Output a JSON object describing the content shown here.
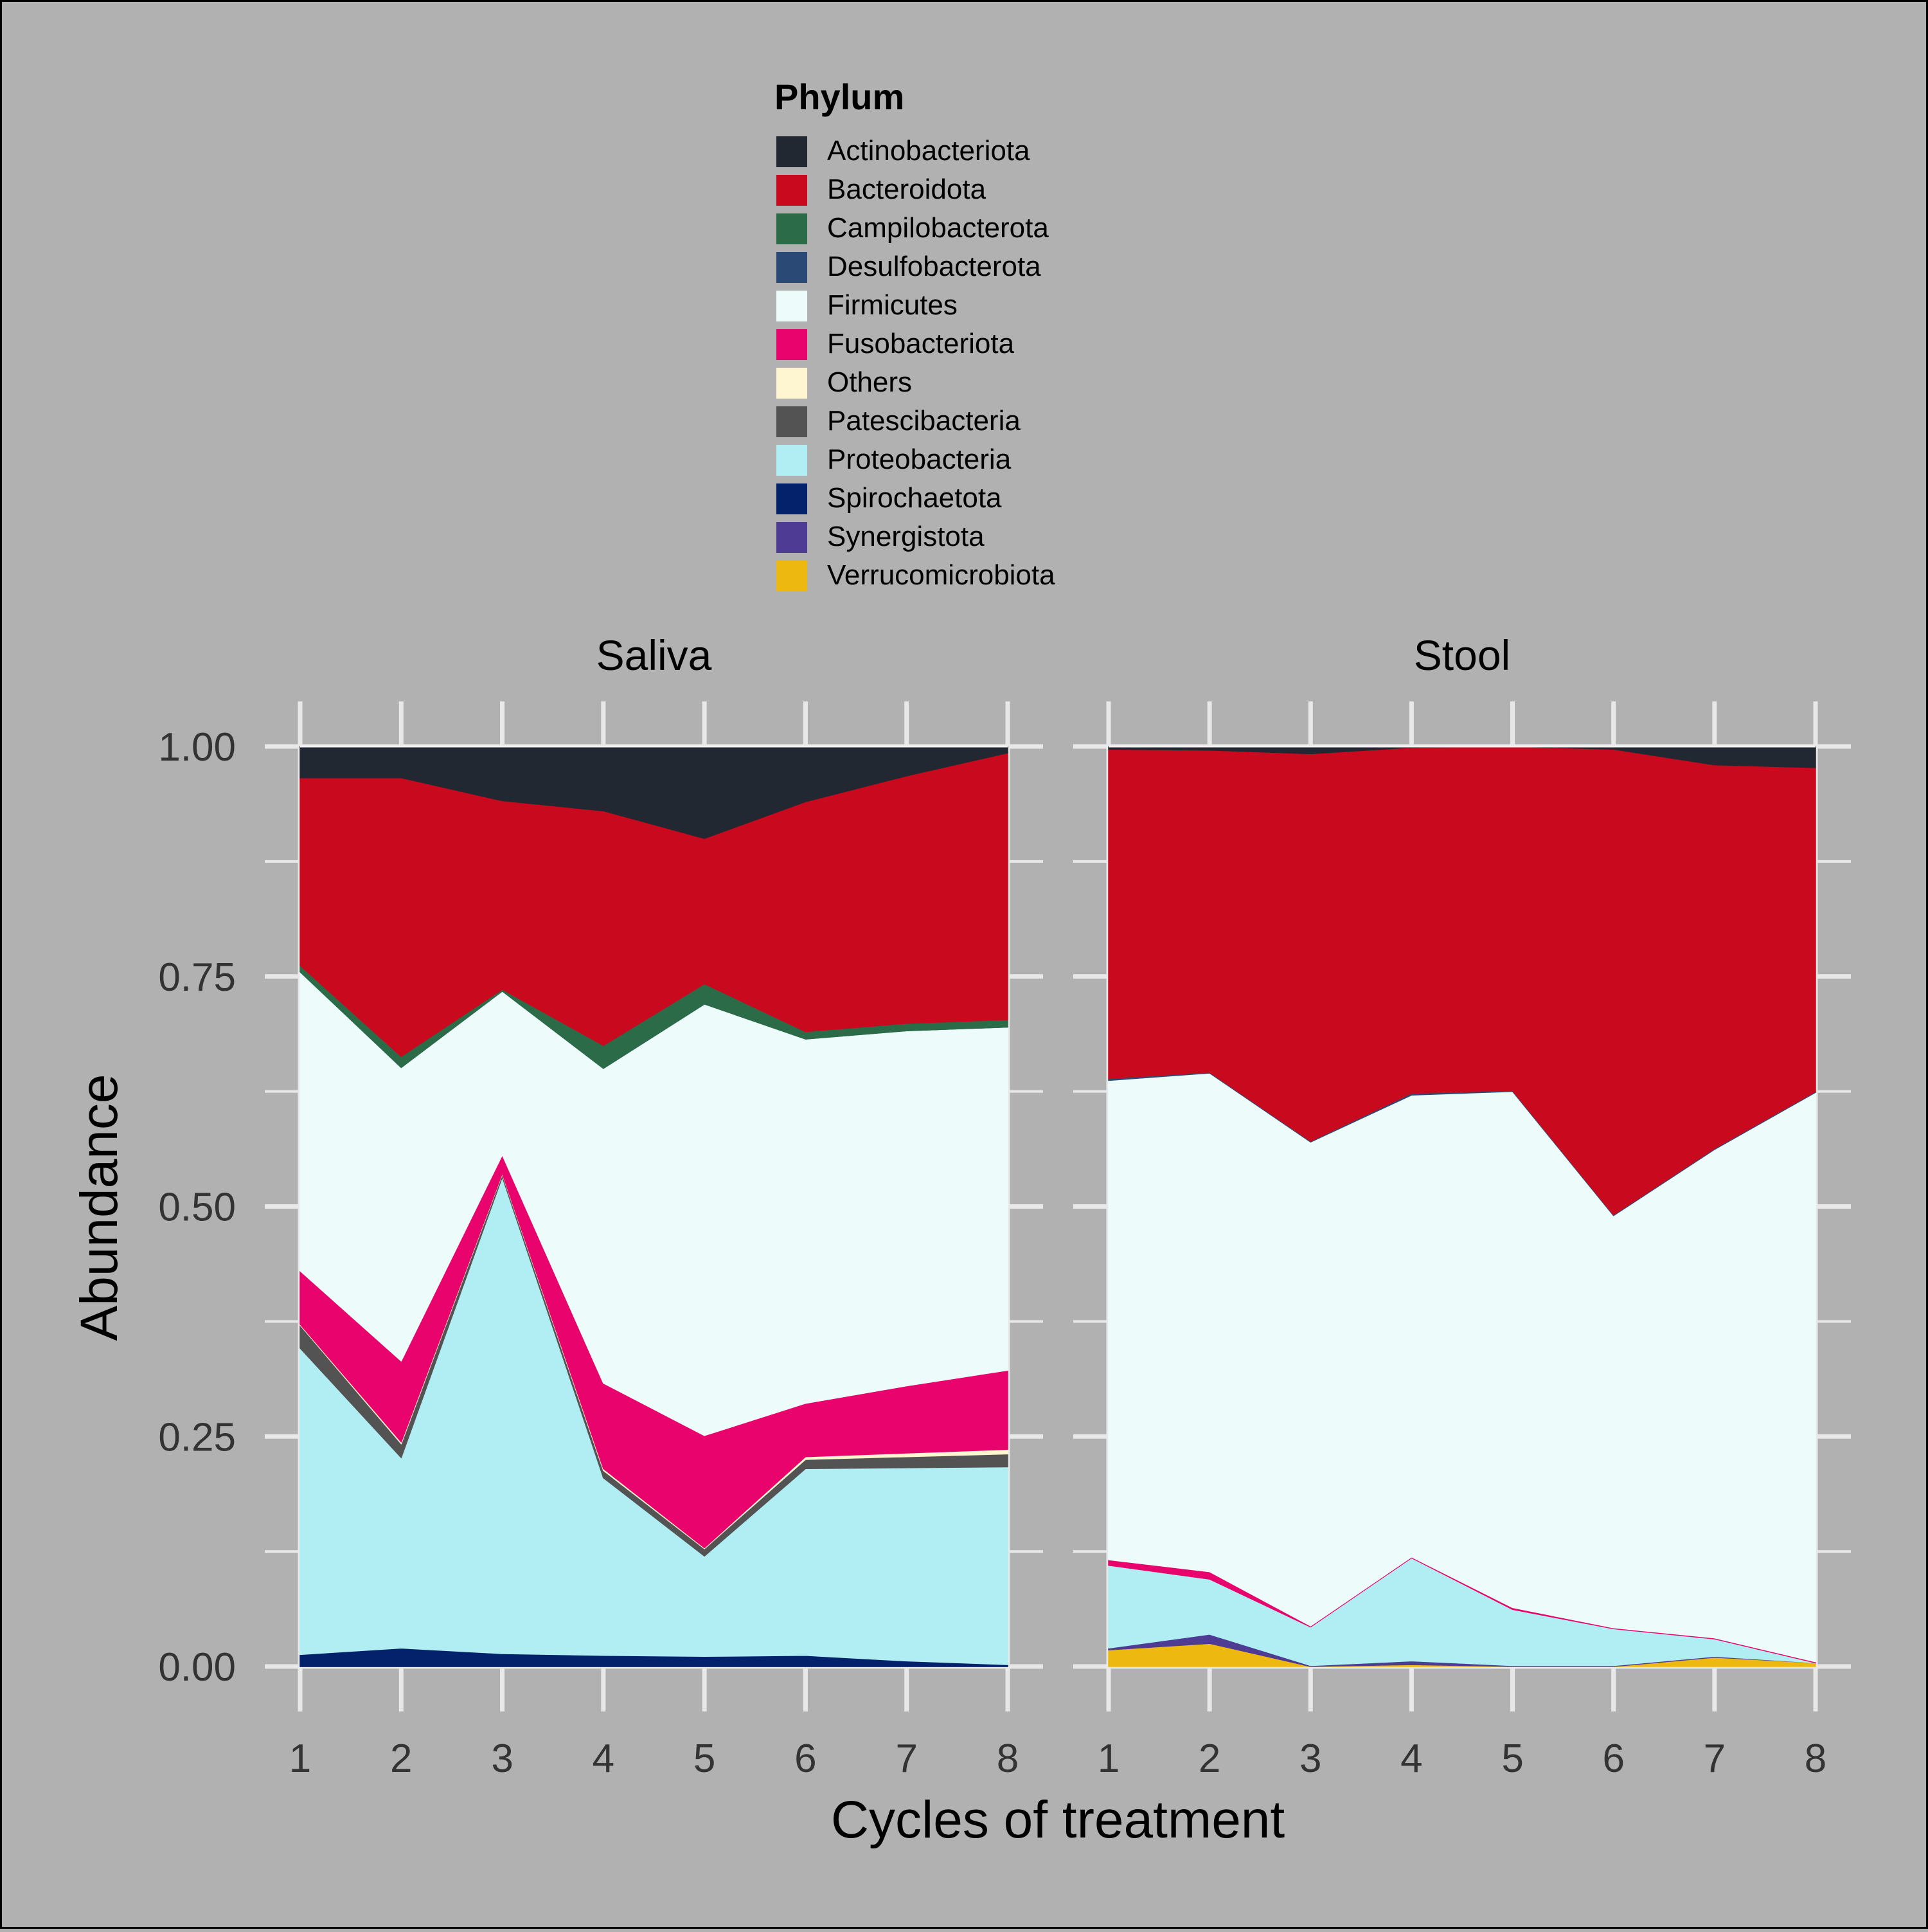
{
  "chart_data": {
    "type": "area",
    "stacked": true,
    "xlabel": "Cycles of treatment",
    "ylabel": "Abundance",
    "ylim": [
      0,
      1
    ],
    "xlim": [
      1,
      8
    ],
    "y_ticks": [
      "0.00",
      "0.25",
      "0.50",
      "0.75",
      "1.00"
    ],
    "x": [
      1,
      2,
      3,
      4,
      5,
      6,
      7,
      8
    ],
    "x_ticks": [
      "1",
      "2",
      "3",
      "4",
      "5",
      "6",
      "7",
      "8"
    ],
    "grid": true,
    "legend": {
      "title": "Phylum",
      "position": "top",
      "entries": [
        {
          "name": "Actinobacteriota",
          "color": "#222831"
        },
        {
          "name": "Bacteroidota",
          "color": "#C90A1E"
        },
        {
          "name": "Campilobacterota",
          "color": "#2C6B48"
        },
        {
          "name": "Desulfobacterota",
          "color": "#2A4A75"
        },
        {
          "name": "Firmicutes",
          "color": "#EEFBFB"
        },
        {
          "name": "Fusobacteriota",
          "color": "#E8036D"
        },
        {
          "name": "Others",
          "color": "#FEF6D0"
        },
        {
          "name": "Patescibacteria",
          "color": "#535353"
        },
        {
          "name": "Proteobacteria",
          "color": "#B0EEF4"
        },
        {
          "name": "Spirochaetota",
          "color": "#04226B"
        },
        {
          "name": "Synergistota",
          "color": "#4E3B93"
        },
        {
          "name": "Verrucomicrobiota",
          "color": "#EDB910"
        }
      ]
    },
    "panels": [
      {
        "title": "Saliva",
        "series": [
          {
            "name": "Verrucomicrobiota",
            "values": [
              0,
              0,
              0,
              0,
              0,
              0,
              0,
              0
            ]
          },
          {
            "name": "Synergistota",
            "values": [
              0,
              0,
              0,
              0,
              0,
              0,
              0,
              0
            ]
          },
          {
            "name": "Spirochaetota",
            "values": [
              0.013,
              0.02,
              0.014,
              0.012,
              0.011,
              0.012,
              0.006,
              0.002
            ]
          },
          {
            "name": "Proteobacteria",
            "values": [
              0.333,
              0.207,
              0.518,
              0.193,
              0.109,
              0.203,
              0.21,
              0.215
            ]
          },
          {
            "name": "Patescibacteria",
            "values": [
              0.025,
              0.015,
              0.003,
              0.008,
              0.008,
              0.01,
              0.012,
              0.014
            ]
          },
          {
            "name": "Others",
            "values": [
              0.001,
              0.002,
              0.001,
              0.002,
              0.001,
              0.003,
              0.004,
              0.005
            ]
          },
          {
            "name": "Fusobacteriota",
            "values": [
              0.058,
              0.088,
              0.02,
              0.093,
              0.122,
              0.058,
              0.073,
              0.086
            ]
          },
          {
            "name": "Firmicutes",
            "values": [
              0.325,
              0.319,
              0.178,
              0.342,
              0.469,
              0.396,
              0.386,
              0.373
            ]
          },
          {
            "name": "Desulfobacterota",
            "values": [
              0,
              0,
              0,
              0,
              0,
              0,
              0,
              0
            ]
          },
          {
            "name": "Campilobacterota",
            "values": [
              0.007,
              0.012,
              0.002,
              0.025,
              0.022,
              0.008,
              0.008,
              0.008
            ]
          },
          {
            "name": "Bacteroidota",
            "values": [
              0.204,
              0.303,
              0.205,
              0.255,
              0.158,
              0.25,
              0.269,
              0.29
            ]
          },
          {
            "name": "Actinobacteriota",
            "values": [
              0.034,
              0.034,
              0.059,
              0.07,
              0.1,
              0.06,
              0.032,
              0.007
            ]
          }
        ]
      },
      {
        "title": "Stool",
        "series": [
          {
            "name": "Verrucomicrobiota",
            "values": [
              0.018,
              0.025,
              0,
              0.002,
              0,
              0,
              0.01,
              0.004
            ]
          },
          {
            "name": "Synergistota",
            "values": [
              0.002,
              0.01,
              0.001,
              0.004,
              0.001,
              0.001,
              0.001,
              0
            ]
          },
          {
            "name": "Spirochaetota",
            "values": [
              0,
              0,
              0,
              0,
              0,
              0,
              0,
              0
            ]
          },
          {
            "name": "Proteobacteria",
            "values": [
              0.09,
              0.06,
              0.042,
              0.112,
              0.061,
              0.04,
              0.019,
              0
            ]
          },
          {
            "name": "Patescibacteria",
            "values": [
              0,
              0,
              0,
              0,
              0,
              0,
              0,
              0
            ]
          },
          {
            "name": "Others",
            "values": [
              0,
              0,
              0,
              0,
              0,
              0,
              0,
              0
            ]
          },
          {
            "name": "Fusobacteriota",
            "values": [
              0.006,
              0.008,
              0.001,
              0.001,
              0.002,
              0.001,
              0.001,
              0.001
            ]
          },
          {
            "name": "Firmicutes",
            "values": [
              0.521,
              0.542,
              0.526,
              0.502,
              0.561,
              0.448,
              0.531,
              0.619
            ]
          },
          {
            "name": "Desulfobacterota",
            "values": [
              0.002,
              0.001,
              0.001,
              0.002,
              0.001,
              0.001,
              0.001,
              0.001
            ]
          },
          {
            "name": "Campilobacterota",
            "values": [
              0,
              0,
              0,
              0,
              0,
              0,
              0,
              0
            ]
          },
          {
            "name": "Bacteroidota",
            "values": [
              0.358,
              0.35,
              0.421,
              0.376,
              0.374,
              0.506,
              0.417,
              0.352
            ]
          },
          {
            "name": "Actinobacteriota",
            "values": [
              0.003,
              0.004,
              0.008,
              0.001,
              0,
              0.003,
              0.02,
              0.023
            ]
          }
        ]
      }
    ]
  }
}
